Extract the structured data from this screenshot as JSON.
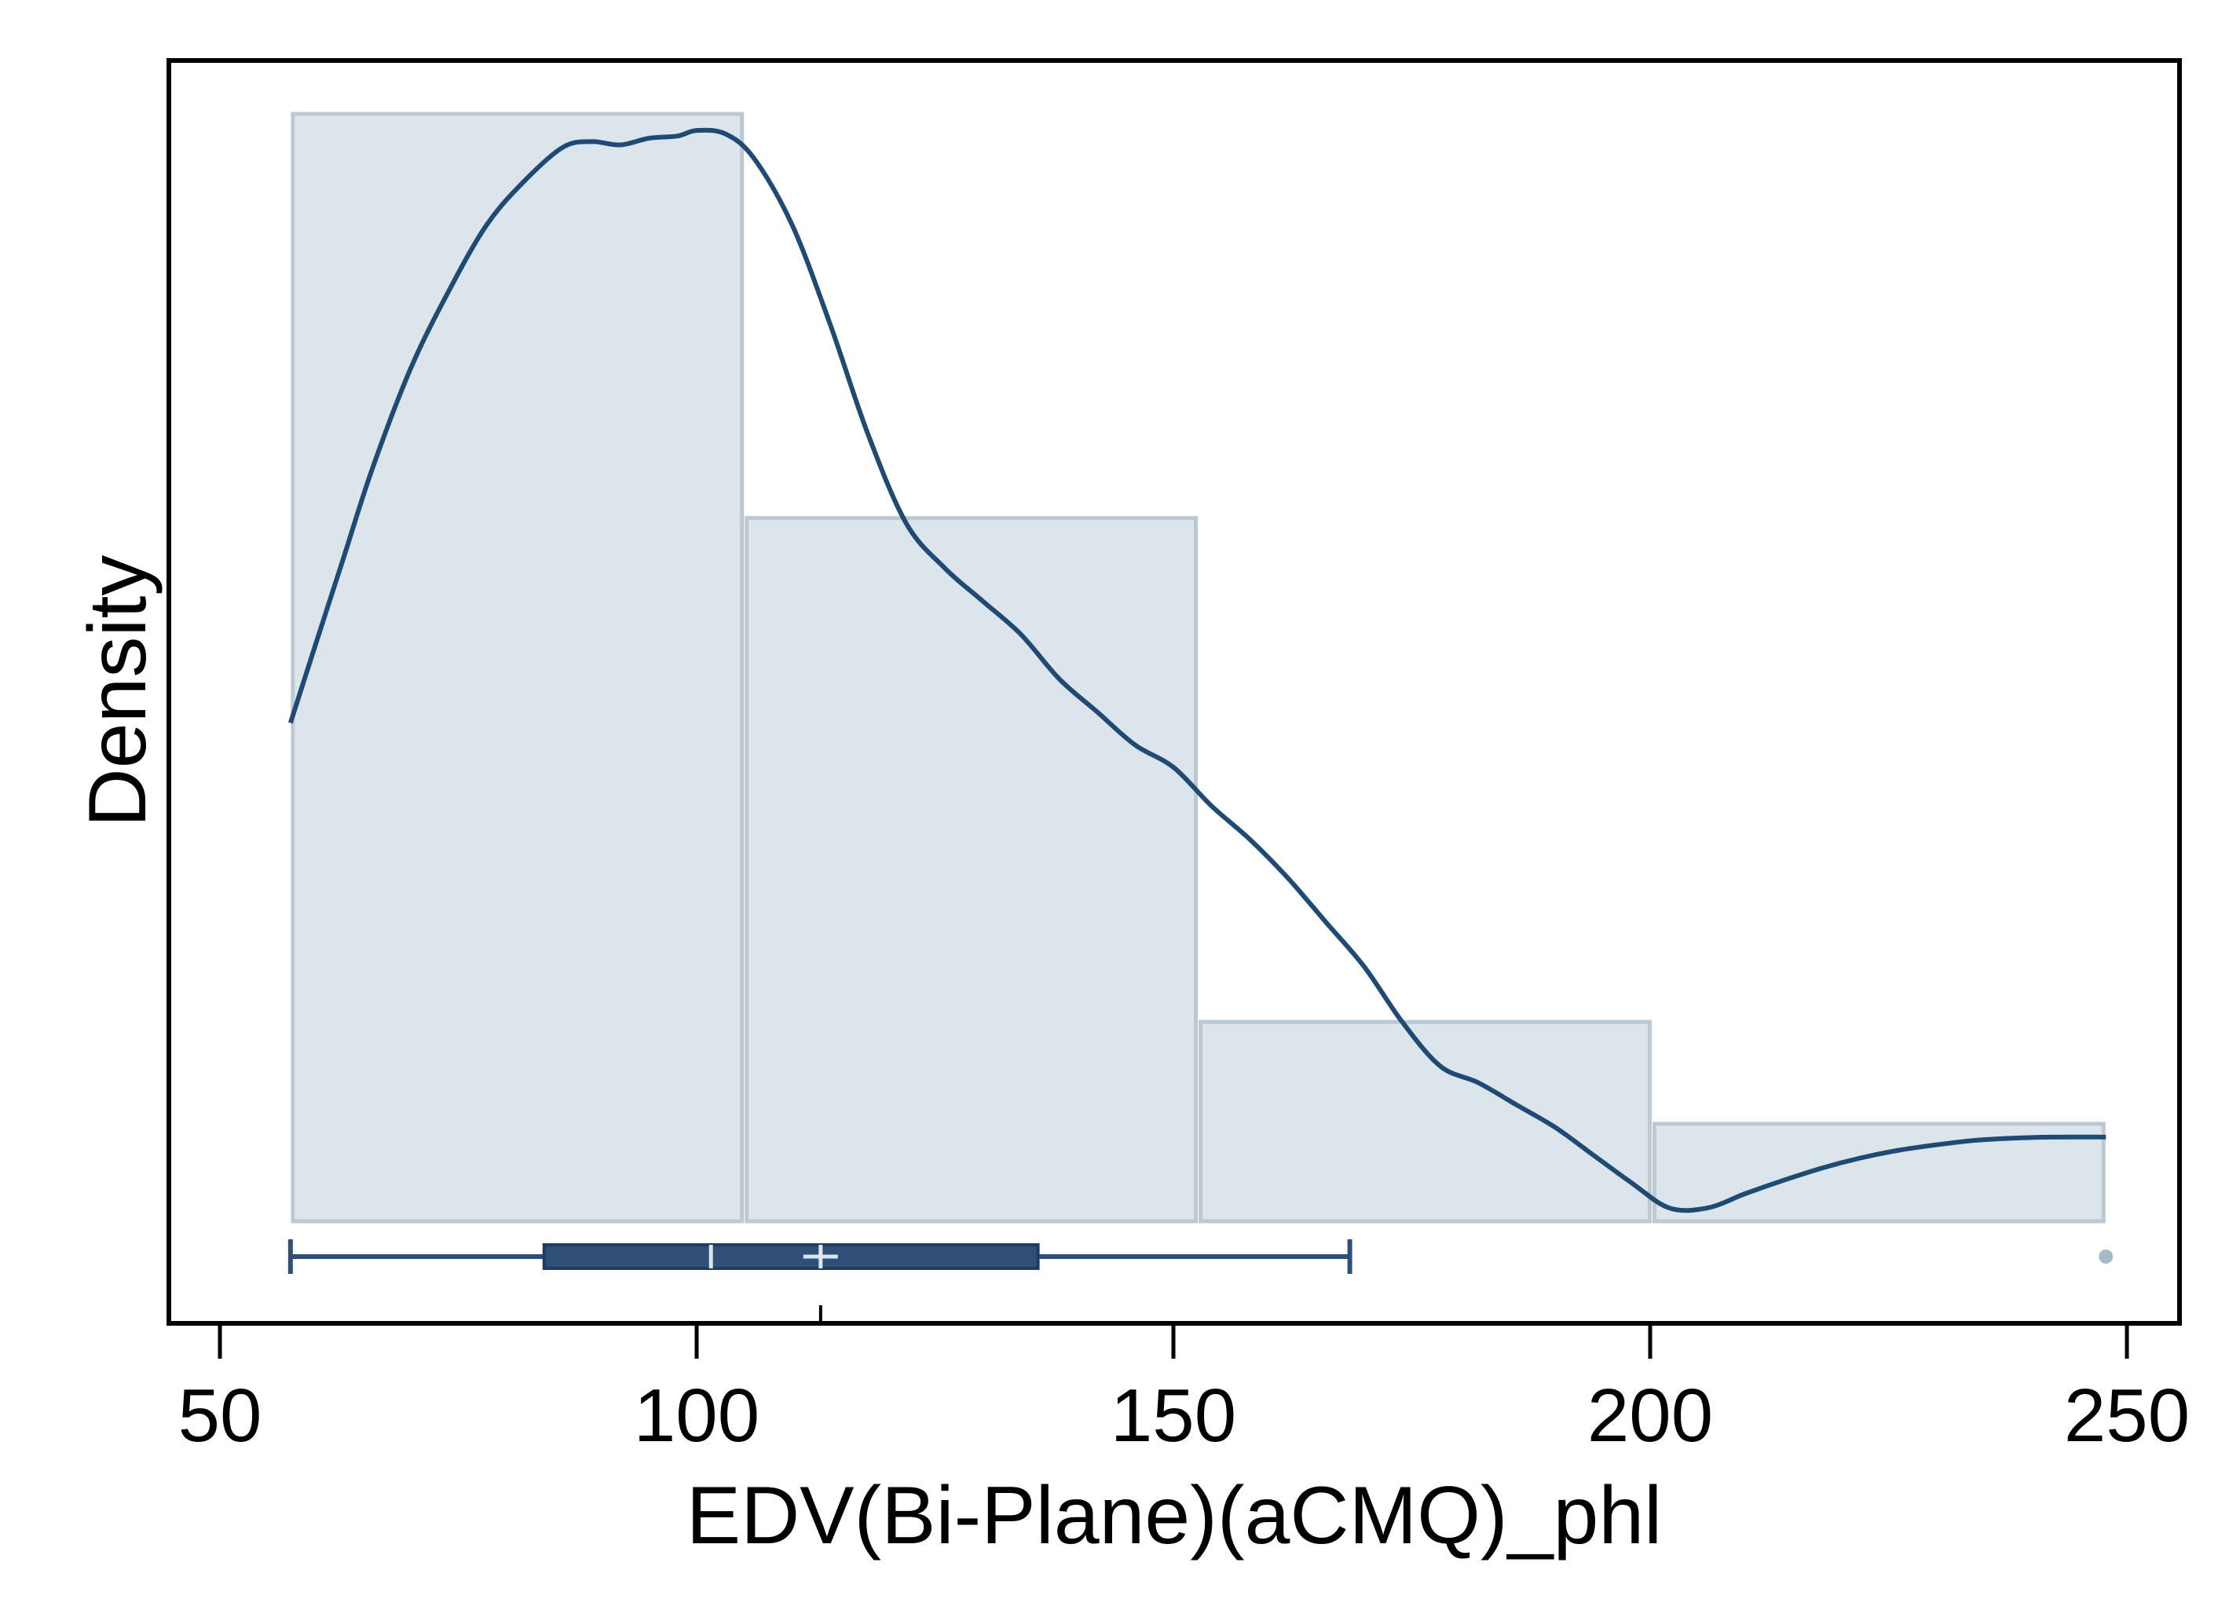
{
  "chart_data": {
    "type": "histogram",
    "xlabel": "EDV(Bi-Plane)(aCMQ)_phl",
    "ylabel": "Density",
    "xlim": [
      45,
      256
    ],
    "x_ticks": [
      50,
      100,
      150,
      200,
      250
    ],
    "y_ticks": [],
    "grid": false,
    "histogram": {
      "bins": [
        {
          "start": 57.4,
          "end": 105.0,
          "density": 1.0
        },
        {
          "start": 105.0,
          "end": 152.6,
          "density": 0.635
        },
        {
          "start": 152.6,
          "end": 200.2,
          "density": 0.18
        },
        {
          "start": 200.2,
          "end": 247.8,
          "density": 0.088
        }
      ],
      "fill_color": "#dce4ec",
      "edge_color": "#bcc8d2"
    },
    "density_curve": {
      "color": "#1f4a73",
      "x": [
        57.4,
        60,
        63,
        66,
        70,
        74,
        78,
        82,
        86,
        89,
        92,
        95,
        98,
        100,
        103,
        106,
        110,
        114,
        118,
        122,
        126,
        130,
        134,
        138,
        142,
        146,
        150,
        154,
        158,
        162,
        166,
        170,
        174,
        178,
        182,
        186,
        190,
        194,
        198,
        202,
        206,
        210,
        214,
        218,
        222,
        226,
        230,
        234,
        238,
        242,
        247.8
      ],
      "y": [
        0.45,
        0.52,
        0.6,
        0.68,
        0.77,
        0.84,
        0.9,
        0.94,
        0.97,
        0.975,
        0.972,
        0.978,
        0.98,
        0.985,
        0.982,
        0.96,
        0.9,
        0.81,
        0.71,
        0.63,
        0.59,
        0.56,
        0.53,
        0.49,
        0.46,
        0.43,
        0.41,
        0.375,
        0.345,
        0.31,
        0.27,
        0.23,
        0.18,
        0.14,
        0.125,
        0.105,
        0.085,
        0.06,
        0.035,
        0.012,
        0.012,
        0.025,
        0.037,
        0.048,
        0.057,
        0.064,
        0.069,
        0.073,
        0.075,
        0.076,
        0.076
      ]
    },
    "boxplot": {
      "color": "#2d4f78",
      "whisker_low": 57.4,
      "q1": 84,
      "median": 101.5,
      "mean": 113,
      "q3": 135.8,
      "whisker_high": 168.5,
      "outliers": [
        247.8
      ],
      "outlier_color": "#a9b8c8"
    }
  }
}
